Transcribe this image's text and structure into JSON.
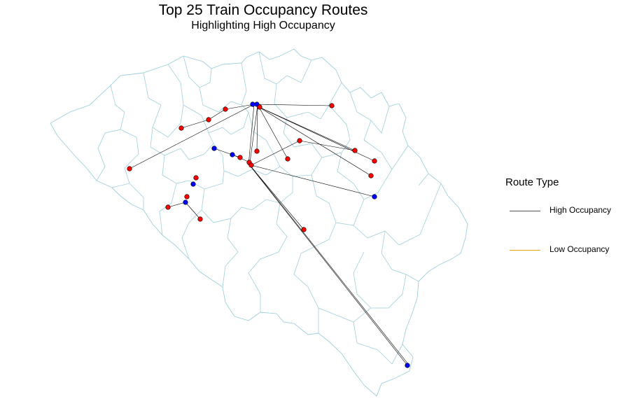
{
  "title": "Top 25 Train Occupancy Routes",
  "subtitle": "Highlighting High Occupancy",
  "colors": {
    "boundary": "#9fcfdc",
    "high_route": "#000000",
    "low_route": "#e8a317",
    "station_red": "#ff0000",
    "station_blue": "#0000ff"
  },
  "legend": {
    "title": "Route Type",
    "items": [
      {
        "label": "High Occupancy",
        "color": "#555555"
      },
      {
        "label": "Low Occupancy",
        "color": "#e8a317"
      }
    ]
  }
}
